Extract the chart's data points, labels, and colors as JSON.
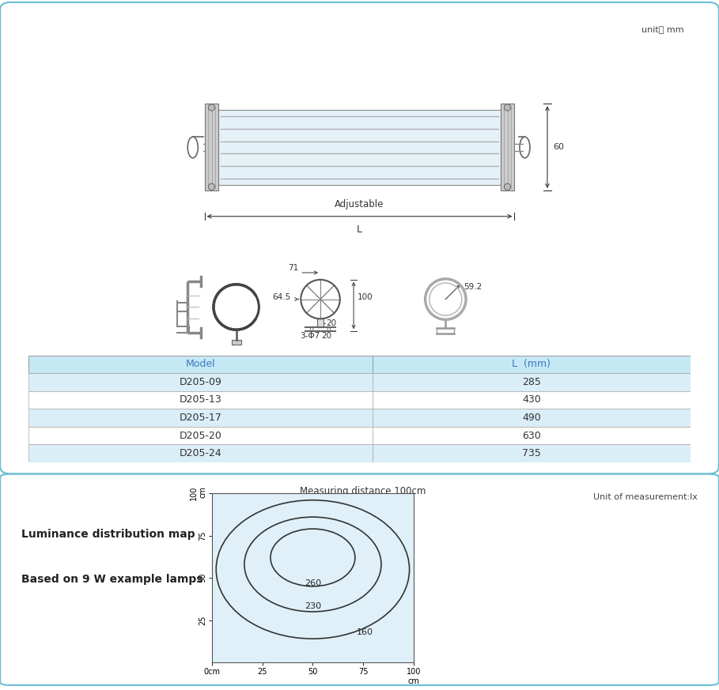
{
  "bg_color": "#ffffff",
  "outer_border_color": "#6bbdd4",
  "unit_text": "unit： mm",
  "table_header_text_color": "#3a7bbf",
  "table_row_bg_alt": "#daeef7",
  "table_models": [
    "D205-09",
    "D205-13",
    "D205-17",
    "D205-20",
    "D205-24"
  ],
  "table_lengths": [
    "285",
    "430",
    "490",
    "630",
    "735"
  ],
  "table_col1_header": "Model",
  "table_col2_header": "L  (mm)",
  "lum_title1": "Luminance distribution map",
  "lum_title2": "Based on 9 W example lamps",
  "lum_subtitle": "Measuring distance 100cm",
  "lum_unit": "Unit of measurement:lx",
  "dim_60": "60",
  "dim_adjustable": "Adjustable",
  "dim_L": "L",
  "dim_71": "71",
  "dim_64_5": "64.5",
  "dim_100": "100",
  "dim_20a": "20",
  "dim_20b": "20",
  "dim_3phi7": "3-Φ7",
  "dim_59_2": "59.2"
}
